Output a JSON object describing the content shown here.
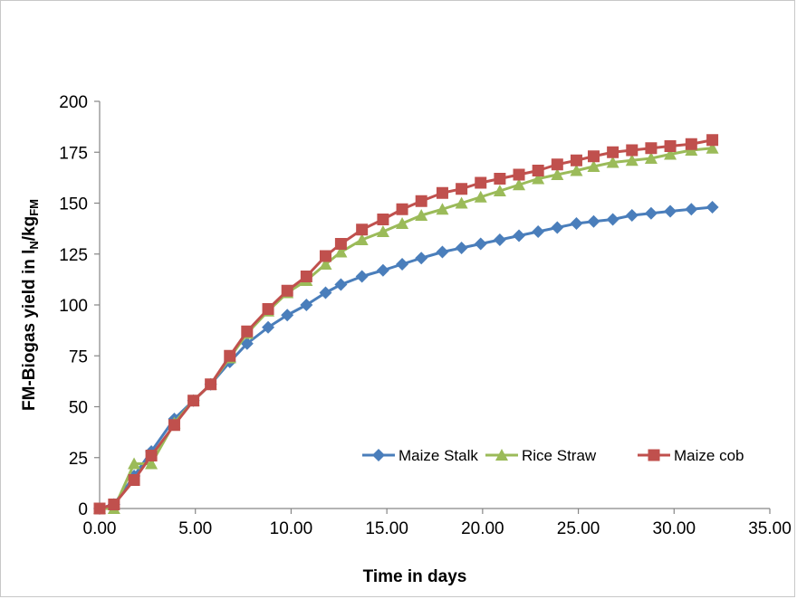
{
  "chart_data": {
    "type": "line",
    "title": "",
    "xlabel": "Time in days",
    "ylabel_main": "FM-Biogas yield in l",
    "ylabel_sub1": "N",
    "ylabel_mid": "/kg",
    "ylabel_sub2": "FM",
    "xlim": [
      0,
      35
    ],
    "ylim": [
      0,
      200
    ],
    "x_ticks": [
      "0.00",
      "5.00",
      "10.00",
      "15.00",
      "20.00",
      "25.00",
      "30.00",
      "35.00"
    ],
    "y_ticks": [
      "0",
      "25",
      "50",
      "75",
      "100",
      "125",
      "150",
      "175",
      "200"
    ],
    "grid": false,
    "legend_position": "bottom-right",
    "series": [
      {
        "name": "Maize Stalk",
        "color": "#4a7ebb",
        "marker": "diamond",
        "x": [
          0.0,
          0.75,
          1.8,
          2.7,
          3.9,
          4.9,
          5.8,
          6.8,
          7.7,
          8.8,
          9.8,
          10.8,
          11.8,
          12.6,
          13.7,
          14.8,
          15.8,
          16.8,
          17.9,
          18.9,
          19.9,
          20.9,
          21.9,
          22.9,
          23.9,
          24.9,
          25.8,
          26.8,
          27.8,
          28.8,
          29.8,
          30.9,
          32.0
        ],
        "y": [
          0,
          2,
          16,
          28,
          44,
          53,
          61,
          72,
          81,
          89,
          95,
          100,
          106,
          110,
          114,
          117,
          120,
          123,
          126,
          128,
          130,
          132,
          134,
          136,
          138,
          140,
          141,
          142,
          144,
          145,
          146,
          147,
          148
        ]
      },
      {
        "name": "Rice Straw",
        "color": "#9bbb59",
        "marker": "triangle",
        "x": [
          0.0,
          0.75,
          1.8,
          2.7,
          3.9,
          4.9,
          5.8,
          6.8,
          7.7,
          8.8,
          9.8,
          10.8,
          11.8,
          12.6,
          13.7,
          14.8,
          15.8,
          16.8,
          17.9,
          18.9,
          19.9,
          20.9,
          21.9,
          22.9,
          23.9,
          24.9,
          25.8,
          26.8,
          27.8,
          28.8,
          29.8,
          30.9,
          32.0
        ],
        "y": [
          0,
          0,
          22,
          22,
          42,
          53,
          61,
          74,
          86,
          97,
          106,
          112,
          120,
          126,
          132,
          136,
          140,
          144,
          147,
          150,
          153,
          156,
          159,
          162,
          164,
          166,
          168,
          170,
          171,
          172,
          174,
          176,
          177
        ]
      },
      {
        "name": "Maize cob",
        "color": "#c0504d",
        "marker": "square",
        "x": [
          0.0,
          0.75,
          1.8,
          2.7,
          3.9,
          4.9,
          5.8,
          6.8,
          7.7,
          8.8,
          9.8,
          10.8,
          11.8,
          12.6,
          13.7,
          14.8,
          15.8,
          16.8,
          17.9,
          18.9,
          19.9,
          20.9,
          21.9,
          22.9,
          23.9,
          24.9,
          25.8,
          26.8,
          27.8,
          28.8,
          29.8,
          30.9,
          32.0
        ],
        "y": [
          0,
          2,
          14,
          26,
          41,
          53,
          61,
          75,
          87,
          98,
          107,
          114,
          124,
          130,
          137,
          142,
          147,
          151,
          155,
          157,
          160,
          162,
          164,
          166,
          169,
          171,
          173,
          175,
          176,
          177,
          178,
          179,
          181
        ]
      }
    ]
  }
}
